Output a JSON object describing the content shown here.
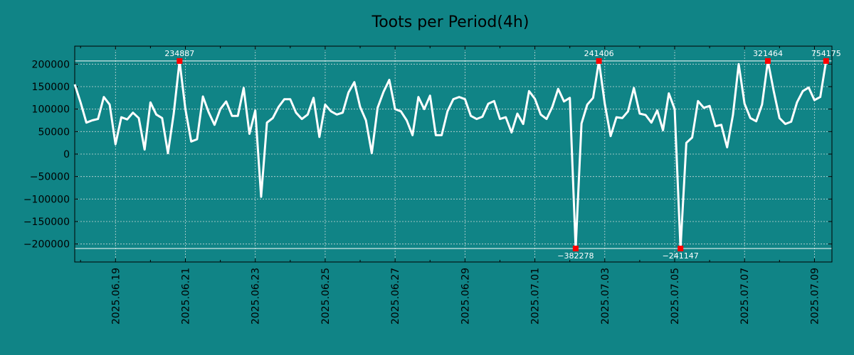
{
  "chart_data": {
    "type": "line",
    "title": "Toots per Period(4h)",
    "xlabel": "",
    "ylabel": "",
    "ylim": [
      -240000,
      240000
    ],
    "xlim": [
      0,
      130
    ],
    "yticks": [
      200000,
      150000,
      100000,
      50000,
      0,
      -50000,
      -100000,
      -150000,
      -200000
    ],
    "ytick_labels": [
      "200000",
      "150000",
      "100000",
      "50000",
      "0",
      "−50000",
      "−100000",
      "−150000",
      "−200000"
    ],
    "xticks": [
      7,
      19,
      31,
      43,
      55,
      67,
      79,
      91,
      103,
      115,
      127
    ],
    "xtick_labels": [
      "2025.06.19",
      "2025.06.21",
      "2025.06.23",
      "2025.06.25",
      "2025.06.27",
      "2025.06.29",
      "2025.07.01",
      "2025.07.03",
      "2025.07.05",
      "2025.07.07",
      "2025.07.09"
    ],
    "clip_high": 207000,
    "clip_low": -210000,
    "grid": true,
    "line_color": "#ffffff",
    "marker_color": "#ff0000",
    "series": [
      {
        "name": "Toots",
        "values": [
          155000,
          115000,
          70000,
          75000,
          78000,
          127000,
          110000,
          22000,
          82000,
          77000,
          92000,
          80000,
          10000,
          115000,
          88000,
          80000,
          2000,
          90000,
          207000,
          100000,
          28000,
          33000,
          128000,
          93000,
          65000,
          100000,
          117000,
          85000,
          85000,
          147000,
          45000,
          97000,
          -95000,
          70000,
          80000,
          105000,
          122000,
          122000,
          92000,
          78000,
          88000,
          125000,
          38000,
          110000,
          95000,
          88000,
          92000,
          137000,
          160000,
          105000,
          75000,
          2000,
          103000,
          138000,
          165000,
          100000,
          95000,
          75000,
          42000,
          127000,
          100000,
          130000,
          42000,
          42000,
          95000,
          122000,
          127000,
          122000,
          85000,
          78000,
          83000,
          112000,
          118000,
          78000,
          82000,
          48000,
          90000,
          67000,
          140000,
          123000,
          88000,
          78000,
          105000,
          145000,
          117000,
          125000,
          -210000,
          68000,
          110000,
          125000,
          207000,
          112000,
          40000,
          82000,
          80000,
          95000,
          147000,
          90000,
          87000,
          70000,
          97000,
          53000,
          135000,
          100000,
          -210000,
          25000,
          37000,
          118000,
          103000,
          107000,
          62000,
          65000,
          15000,
          87000,
          200000,
          112000,
          80000,
          73000,
          110000,
          207000,
          140000,
          80000,
          67000,
          72000,
          115000,
          140000,
          148000,
          120000,
          127000,
          207000
        ]
      }
    ],
    "peak_annotations": [
      {
        "index": 18,
        "label": "234887",
        "position": "above"
      },
      {
        "index": 86,
        "label": "−382278",
        "position": "below"
      },
      {
        "index": 90,
        "label": "241406",
        "position": "above"
      },
      {
        "index": 104,
        "label": "−241147",
        "position": "below"
      },
      {
        "index": 119,
        "label": "321464",
        "position": "above"
      },
      {
        "index": 129,
        "label": "754175",
        "position": "above"
      }
    ]
  }
}
